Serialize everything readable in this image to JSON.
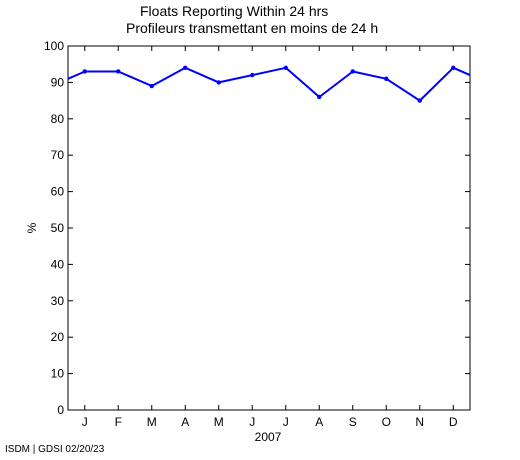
{
  "chart_data": {
    "type": "line",
    "title": "Floats Reporting Within 24 hrs",
    "subtitle": "Profileurs transmettant en moins de 24 h",
    "xlabel": "2007",
    "ylabel": "%",
    "ylim": [
      0,
      100
    ],
    "yticks": [
      0,
      10,
      20,
      30,
      40,
      50,
      60,
      70,
      80,
      90,
      100
    ],
    "xticks": [
      "J",
      "F",
      "M",
      "A",
      "M",
      "J",
      "J",
      "A",
      "S",
      "O",
      "N",
      "D"
    ],
    "grid": false,
    "color": "#0000ff",
    "series": [
      {
        "x": [
          0.5,
          1,
          2,
          3,
          4,
          5,
          6,
          7,
          8,
          9,
          10,
          11,
          12,
          12.5
        ],
        "values": [
          91,
          93,
          93,
          89,
          94,
          90,
          92,
          94,
          86,
          93,
          91,
          85,
          94,
          92
        ]
      }
    ]
  },
  "footer": "ISDM | GDSI 02/20/23"
}
